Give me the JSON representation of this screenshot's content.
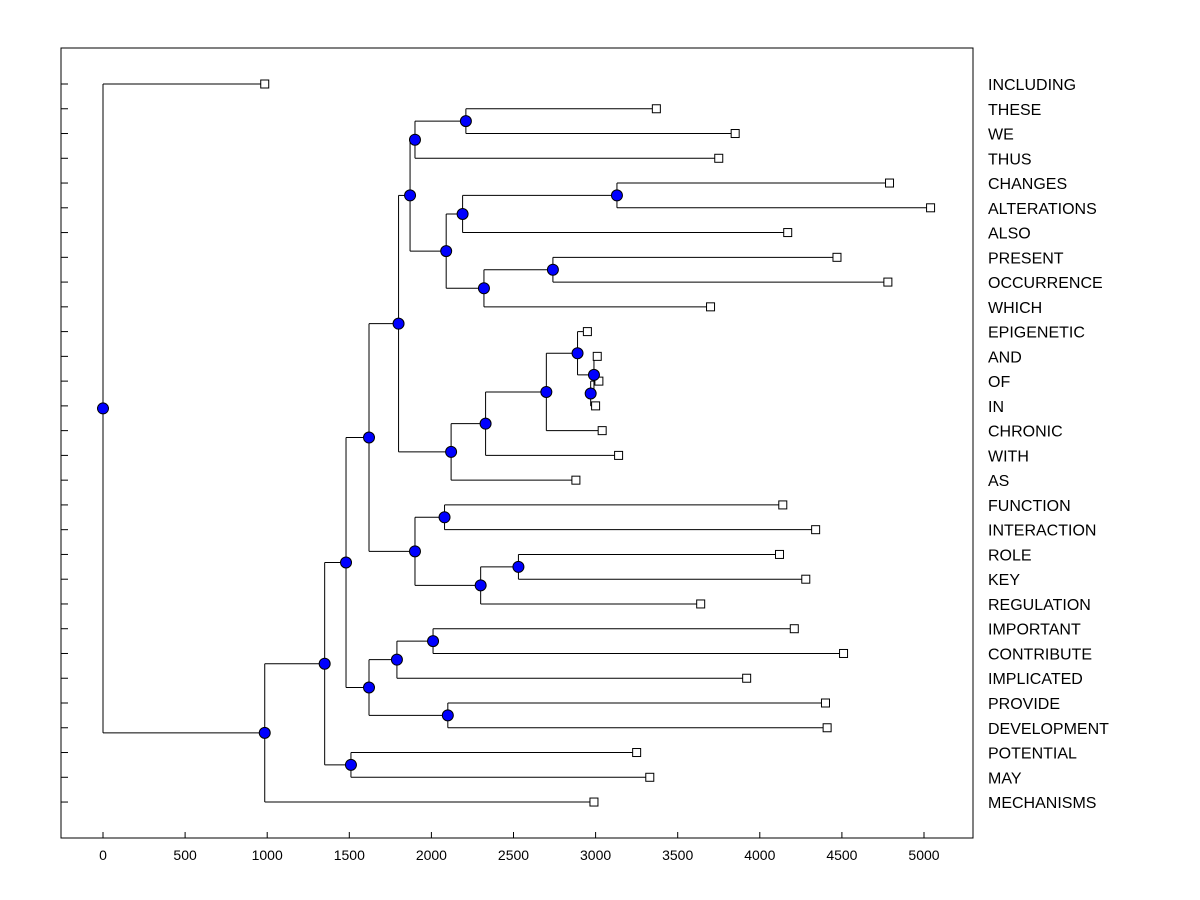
{
  "chart_data": {
    "type": "dendrogram",
    "title": "",
    "xlabel": "",
    "ylabel": "",
    "xlim": [
      -250,
      5300
    ],
    "x_ticks": [
      0,
      500,
      1000,
      1500,
      2000,
      2500,
      3000,
      3500,
      4000,
      4500,
      5000
    ],
    "x_tick_labels": [
      "0",
      "500",
      "1000",
      "1500",
      "2000",
      "2500",
      "3000",
      "3500",
      "4000",
      "4500",
      "5000"
    ],
    "grid": false,
    "leaf_order": [
      "INCLUDING",
      "THESE",
      "WE",
      "THUS",
      "CHANGES",
      "ALTERATIONS",
      "ALSO",
      "PRESENT",
      "OCCURRENCE",
      "WHICH",
      "EPIGENETIC",
      "AND",
      "OF",
      "IN",
      "CHRONIC",
      "WITH",
      "AS",
      "FUNCTION",
      "INTERACTION",
      "ROLE",
      "KEY",
      "REGULATION",
      "IMPORTANT",
      "CONTRIBUTE",
      "IMPLICATED",
      "PROVIDE",
      "DEVELOPMENT",
      "POTENTIAL",
      "MAY",
      "MECHANISMS"
    ],
    "leaves": [
      {
        "id": "INCLUDING",
        "label": "INCLUDING",
        "x": 985
      },
      {
        "id": "THESE",
        "label": "THESE",
        "x": 3370
      },
      {
        "id": "WE",
        "label": "WE",
        "x": 3850
      },
      {
        "id": "THUS",
        "label": "THUS",
        "x": 3750
      },
      {
        "id": "CHANGES",
        "label": "CHANGES",
        "x": 4790
      },
      {
        "id": "ALTERATIONS",
        "label": "ALTERATIONS",
        "x": 5040
      },
      {
        "id": "ALSO",
        "label": "ALSO",
        "x": 4170
      },
      {
        "id": "PRESENT",
        "label": "PRESENT",
        "x": 4470
      },
      {
        "id": "OCCURRENCE",
        "label": "OCCURRENCE",
        "x": 4780
      },
      {
        "id": "WHICH",
        "label": "WHICH",
        "x": 3700
      },
      {
        "id": "EPIGENETIC",
        "label": "EPIGENETIC",
        "x": 2950
      },
      {
        "id": "AND",
        "label": "AND",
        "x": 3010
      },
      {
        "id": "OF",
        "label": "OF",
        "x": 3020
      },
      {
        "id": "IN",
        "label": "IN",
        "x": 3000
      },
      {
        "id": "CHRONIC",
        "label": "CHRONIC",
        "x": 3040
      },
      {
        "id": "WITH",
        "label": "WITH",
        "x": 3140
      },
      {
        "id": "AS",
        "label": "AS",
        "x": 2880
      },
      {
        "id": "FUNCTION",
        "label": "FUNCTION",
        "x": 4140
      },
      {
        "id": "INTERACTION",
        "label": "INTERACTION",
        "x": 4340
      },
      {
        "id": "ROLE",
        "label": "ROLE",
        "x": 4120
      },
      {
        "id": "KEY",
        "label": "KEY",
        "x": 4280
      },
      {
        "id": "REGULATION",
        "label": "REGULATION",
        "x": 3640
      },
      {
        "id": "IMPORTANT",
        "label": "IMPORTANT",
        "x": 4210
      },
      {
        "id": "CONTRIBUTE",
        "label": "CONTRIBUTE",
        "x": 4510
      },
      {
        "id": "IMPLICATED",
        "label": "IMPLICATED",
        "x": 3920
      },
      {
        "id": "PROVIDE",
        "label": "PROVIDE",
        "x": 4400
      },
      {
        "id": "DEVELOPMENT",
        "label": "DEVELOPMENT",
        "x": 4410
      },
      {
        "id": "POTENTIAL",
        "label": "POTENTIAL",
        "x": 3250
      },
      {
        "id": "MAY",
        "label": "MAY",
        "x": 3330
      },
      {
        "id": "MECHANISMS",
        "label": "MECHANISMS",
        "x": 2990
      }
    ],
    "nodes": [
      {
        "id": "n_the_we",
        "x": 2210,
        "children": [
          "THESE",
          "WE"
        ]
      },
      {
        "id": "n_tw_thus",
        "x": 1900,
        "children": [
          "n_the_we",
          "THUS"
        ]
      },
      {
        "id": "n_ch_alt",
        "x": 3130,
        "children": [
          "CHANGES",
          "ALTERATIONS"
        ]
      },
      {
        "id": "n_alt_also",
        "x": 2190,
        "children": [
          "n_ch_alt",
          "ALSO"
        ]
      },
      {
        "id": "n_pr_oc",
        "x": 2740,
        "children": [
          "PRESENT",
          "OCCURRENCE"
        ]
      },
      {
        "id": "n_proc_which",
        "x": 2320,
        "children": [
          "n_pr_oc",
          "WHICH"
        ]
      },
      {
        "id": "n_also_which",
        "x": 2090,
        "children": [
          "n_alt_also",
          "n_proc_which"
        ]
      },
      {
        "id": "n_grpA",
        "x": 1870,
        "children": [
          "n_tw_thus",
          "n_also_which"
        ]
      },
      {
        "id": "n_of_in",
        "x": 2970,
        "children": [
          "OF",
          "IN"
        ]
      },
      {
        "id": "n_and_ofin",
        "x": 2990,
        "children": [
          "AND",
          "n_of_in"
        ]
      },
      {
        "id": "n_epi_and",
        "x": 2890,
        "children": [
          "EPIGENETIC",
          "n_and_ofin"
        ]
      },
      {
        "id": "n_epi_chr",
        "x": 2700,
        "children": [
          "n_epi_and",
          "CHRONIC"
        ]
      },
      {
        "id": "n_epi_with",
        "x": 2330,
        "children": [
          "n_epi_chr",
          "WITH"
        ]
      },
      {
        "id": "n_epi_as",
        "x": 2120,
        "children": [
          "n_epi_with",
          "AS"
        ]
      },
      {
        "id": "n_AB",
        "x": 1800,
        "children": [
          "n_grpA",
          "n_epi_as"
        ]
      },
      {
        "id": "n_fn_int",
        "x": 2080,
        "children": [
          "FUNCTION",
          "INTERACTION"
        ]
      },
      {
        "id": "n_role_key",
        "x": 2530,
        "children": [
          "ROLE",
          "KEY"
        ]
      },
      {
        "id": "n_rk_reg",
        "x": 2300,
        "children": [
          "n_role_key",
          "REGULATION"
        ]
      },
      {
        "id": "n_fn_reg",
        "x": 1900,
        "children": [
          "n_fn_int",
          "n_rk_reg"
        ]
      },
      {
        "id": "n_ABC",
        "x": 1620,
        "children": [
          "n_AB",
          "n_fn_reg"
        ]
      },
      {
        "id": "n_imp_con",
        "x": 2010,
        "children": [
          "IMPORTANT",
          "CONTRIBUTE"
        ]
      },
      {
        "id": "n_ic_impl",
        "x": 1790,
        "children": [
          "n_imp_con",
          "IMPLICATED"
        ]
      },
      {
        "id": "n_prov_dev",
        "x": 2100,
        "children": [
          "PROVIDE",
          "DEVELOPMENT"
        ]
      },
      {
        "id": "n_impl_dev",
        "x": 1620,
        "children": [
          "n_ic_impl",
          "n_prov_dev"
        ]
      },
      {
        "id": "n_ABCD",
        "x": 1480,
        "children": [
          "n_ABC",
          "n_impl_dev"
        ]
      },
      {
        "id": "n_pot_may",
        "x": 1510,
        "children": [
          "POTENTIAL",
          "MAY"
        ]
      },
      {
        "id": "n_ABCDE",
        "x": 1350,
        "children": [
          "n_ABCD",
          "n_pot_may"
        ]
      },
      {
        "id": "n_all_mech",
        "x": 985,
        "children": [
          "n_ABCDE",
          "MECHANISMS"
        ]
      },
      {
        "id": "n_root",
        "x": 0,
        "children": [
          "INCLUDING",
          "n_all_mech"
        ]
      }
    ],
    "colors": {
      "node_fill": "#0000ff",
      "node_stroke": "#000000",
      "leaf_fill": "#ffffff",
      "leaf_stroke": "#000000",
      "line": "#000000"
    }
  }
}
